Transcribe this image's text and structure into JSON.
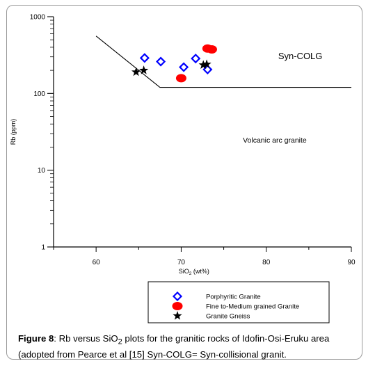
{
  "chart_data": {
    "type": "scatter",
    "xlabel": "SiO",
    "xlabel_sub": "2",
    "xlabel_unit": " (wt%)",
    "ylabel": "Rb (ppm)",
    "xlim": [
      55,
      90
    ],
    "ylim": [
      1,
      1000
    ],
    "y_scale": "log",
    "x_ticks": [
      60,
      70,
      80,
      90
    ],
    "y_ticks": [
      1,
      10,
      100,
      1000
    ],
    "grid": false,
    "legend_position": "bottom-right",
    "series": [
      {
        "name": "Porphyritic Granite",
        "marker": "diamond",
        "color": "#0000ff",
        "points": [
          [
            65.7,
            290
          ],
          [
            67.6,
            260
          ],
          [
            70.3,
            220
          ],
          [
            71.7,
            285
          ],
          [
            73.1,
            205
          ]
        ]
      },
      {
        "name": "Fine to-Medium grained Granite",
        "marker": "circle",
        "color": "#ff0000",
        "points": [
          [
            70.0,
            158
          ],
          [
            73.1,
            385
          ],
          [
            73.6,
            375
          ]
        ]
      },
      {
        "name": "Granite Gneiss",
        "marker": "star",
        "color": "#000000",
        "points": [
          [
            64.7,
            190
          ],
          [
            65.6,
            200
          ],
          [
            72.6,
            235
          ],
          [
            73.0,
            240
          ]
        ]
      }
    ],
    "boundary_lines": [
      {
        "points": [
          [
            60,
            560
          ],
          [
            67.5,
            120
          ],
          [
            90,
            120
          ]
        ]
      }
    ],
    "annotations": [
      {
        "text": "Syn-COLG",
        "x": 84,
        "y": 280
      },
      {
        "text": "Volcanic arc granite",
        "x": 81,
        "y": 23
      }
    ]
  },
  "caption": {
    "label": "Figure 8",
    "text_1": ": Rb versus SiO",
    "sub": "2",
    "text_2": " plots for the granitic rocks of Idofin-Osi-Eruku area (adopted from Pearce et al [15] Syn-COLG= Syn-collisional granit."
  }
}
